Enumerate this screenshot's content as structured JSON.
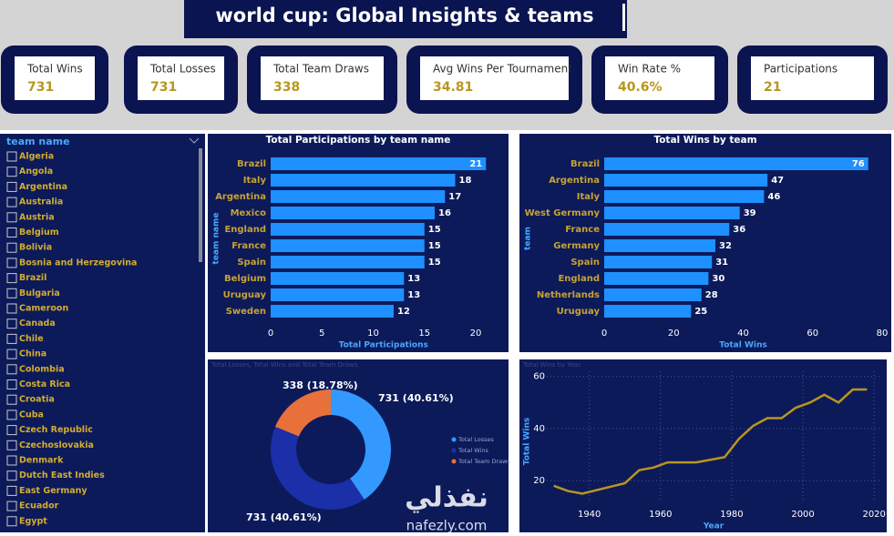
{
  "header": {
    "title": "world cup: Global Insights & teams"
  },
  "cards": [
    {
      "label": "Total Wins",
      "value": "731"
    },
    {
      "label": "Total Losses",
      "value": "731"
    },
    {
      "label": "Total Team Draws",
      "value": "338"
    },
    {
      "label": "Avg Wins Per Tournament",
      "value": "34.81"
    },
    {
      "label": "Win Rate %",
      "value": "40.6%"
    },
    {
      "label": "Participations",
      "value": "21"
    }
  ],
  "slicer": {
    "title": "team name",
    "items": [
      "Algeria",
      "Angola",
      "Argentina",
      "Australia",
      "Austria",
      "Belgium",
      "Bolivia",
      "Bosnia and Herzegovina",
      "Brazil",
      "Bulgaria",
      "Cameroon",
      "Canada",
      "Chile",
      "China",
      "Colombia",
      "Costa Rica",
      "Croatia",
      "Cuba",
      "Czech Republic",
      "Czechoslovakia",
      "Denmark",
      "Dutch East Indies",
      "East Germany",
      "Ecuador",
      "Egypt"
    ]
  },
  "chart_data": [
    {
      "type": "hbar",
      "title": "Total Participations by team name",
      "y_label": "team name",
      "x_label": "Total Participations",
      "categories": [
        "Brazil",
        "Italy",
        "Argentina",
        "Mexico",
        "England",
        "France",
        "Spain",
        "Belgium",
        "Uruguay",
        "Sweden"
      ],
      "values": [
        21,
        18,
        17,
        16,
        15,
        15,
        15,
        13,
        13,
        12
      ],
      "color": "#1e90ff",
      "xlim": [
        0,
        22
      ],
      "xticks": [
        0,
        5,
        10,
        15,
        20
      ]
    },
    {
      "type": "hbar",
      "title": "Total Wins by team",
      "y_label": "team",
      "x_label": "Total Wins",
      "categories": [
        "Brazil",
        "Argentina",
        "Italy",
        "West Germany",
        "France",
        "Germany",
        "Spain",
        "England",
        "Netherlands",
        "Uruguay"
      ],
      "values": [
        76,
        47,
        46,
        39,
        36,
        32,
        31,
        30,
        28,
        25
      ],
      "color": "#1e90ff",
      "xlim": [
        0,
        80
      ],
      "xticks": [
        0,
        20,
        40,
        60,
        80
      ]
    },
    {
      "type": "donut",
      "title": "Total Losses, Total Wins and Total Team Draws",
      "categories": [
        "Total Losses",
        "Total Wins",
        "Total Team Draws"
      ],
      "values": [
        731,
        731,
        338
      ],
      "value_labels": [
        "731 (40.61%)",
        "731 (40.61%)",
        "338 (18.78%)"
      ],
      "colors": [
        "#3399ff",
        "#1a2fa8",
        "#e8703a"
      ]
    },
    {
      "type": "line",
      "title": "Total Wins by Year",
      "x_label": "Year",
      "y_label": "Total Wins",
      "x": [
        1930,
        1934,
        1938,
        1950,
        1954,
        1958,
        1962,
        1966,
        1970,
        1974,
        1978,
        1982,
        1986,
        1990,
        1994,
        1998,
        2002,
        2006,
        2010,
        2014,
        2018
      ],
      "series": [
        {
          "name": "Total Wins",
          "color": "#b8961e",
          "values": [
            18,
            16,
            15,
            19,
            24,
            25,
            27,
            27,
            27,
            28,
            29,
            36,
            41,
            44,
            44,
            48,
            50,
            53,
            50,
            55,
            55
          ]
        }
      ],
      "xlim": [
        1926,
        2022
      ],
      "xticks": [
        1940,
        1960,
        1980,
        2000,
        2020
      ],
      "ylim": [
        12,
        62
      ],
      "yticks": [
        20,
        40,
        60
      ],
      "grid": true
    }
  ],
  "watermark": {
    "arabic": "نفذلي",
    "latin": "nafezly.com"
  }
}
